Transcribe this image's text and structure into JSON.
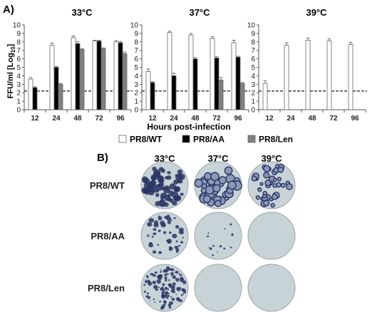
{
  "panel_a_label": "A)",
  "panel_b_label": "B)",
  "chart_data": {
    "type": "bar",
    "ylabel_main": "FFU/ml [Log",
    "ylabel_sub": "10",
    "ylabel_end": "]",
    "xlabel": "Hours post-infection",
    "categories": [
      "12",
      "24",
      "48",
      "72",
      "96"
    ],
    "ylim": [
      0,
      10
    ],
    "yticks": [
      0,
      1,
      2,
      3,
      4,
      5,
      6,
      7,
      8,
      9,
      10
    ],
    "detection_limit": 2.2,
    "legend": [
      {
        "name": "PR8/WT",
        "color": "#ffffff"
      },
      {
        "name": "PR8/AA",
        "color": "#000000"
      },
      {
        "name": "PR8/Len",
        "color": "#808080"
      }
    ],
    "panels": [
      {
        "title": "33°C",
        "series": [
          {
            "name": "PR8/WT",
            "values": [
              3.6,
              7.6,
              8.5,
              8.1,
              8.0
            ],
            "errors": [
              0.2,
              0.25,
              0.2,
              0.1,
              0.15
            ]
          },
          {
            "name": "PR8/AA",
            "values": [
              2.6,
              5.0,
              7.8,
              8.1,
              7.9
            ],
            "errors": [
              0.1,
              0.1,
              0.25,
              0.1,
              0.15
            ]
          },
          {
            "name": "PR8/Len",
            "values": [
              null,
              3.0,
              7.1,
              7.2,
              6.6
            ],
            "errors": [
              null,
              0.1,
              0.1,
              0.1,
              0.2
            ]
          }
        ]
      },
      {
        "title": "37°C",
        "series": [
          {
            "name": "PR8/WT",
            "values": [
              4.5,
              9.1,
              8.8,
              8.4,
              7.9
            ],
            "errors": [
              0.3,
              0.15,
              0.2,
              0.2,
              0.3
            ]
          },
          {
            "name": "PR8/AA",
            "values": [
              3.2,
              4.0,
              6.0,
              6.1,
              6.2
            ],
            "errors": [
              0.1,
              0.3,
              0.15,
              0.15,
              0.1
            ]
          },
          {
            "name": "PR8/Len",
            "values": [
              null,
              null,
              null,
              3.5,
              3.1
            ],
            "errors": [
              null,
              null,
              null,
              0.3,
              0.1
            ]
          }
        ]
      },
      {
        "title": "39°C",
        "series": [
          {
            "name": "PR8/WT",
            "values": [
              3.1,
              7.6,
              8.2,
              8.1,
              7.7
            ],
            "errors": [
              0.3,
              0.3,
              0.25,
              0.25,
              0.25
            ]
          },
          {
            "name": "PR8/AA",
            "values": [
              null,
              null,
              null,
              null,
              null
            ],
            "errors": [
              null,
              null,
              null,
              null,
              null
            ]
          },
          {
            "name": "PR8/Len",
            "values": [
              null,
              null,
              null,
              null,
              null
            ],
            "errors": [
              null,
              null,
              null,
              null,
              null
            ]
          }
        ]
      }
    ]
  },
  "plates": {
    "columns": [
      "33°C",
      "37°C",
      "39°C"
    ],
    "rows": [
      {
        "label": "PR8/WT",
        "densities": [
          "very-high",
          "high-large",
          "medium"
        ]
      },
      {
        "label": "PR8/AA",
        "densities": [
          "high",
          "low",
          "none"
        ]
      },
      {
        "label": "PR8/Len",
        "densities": [
          "very-high-small",
          "none",
          "none"
        ]
      }
    ],
    "plate_color": "#c8d3d8",
    "plaque_color": "#2a3564"
  }
}
